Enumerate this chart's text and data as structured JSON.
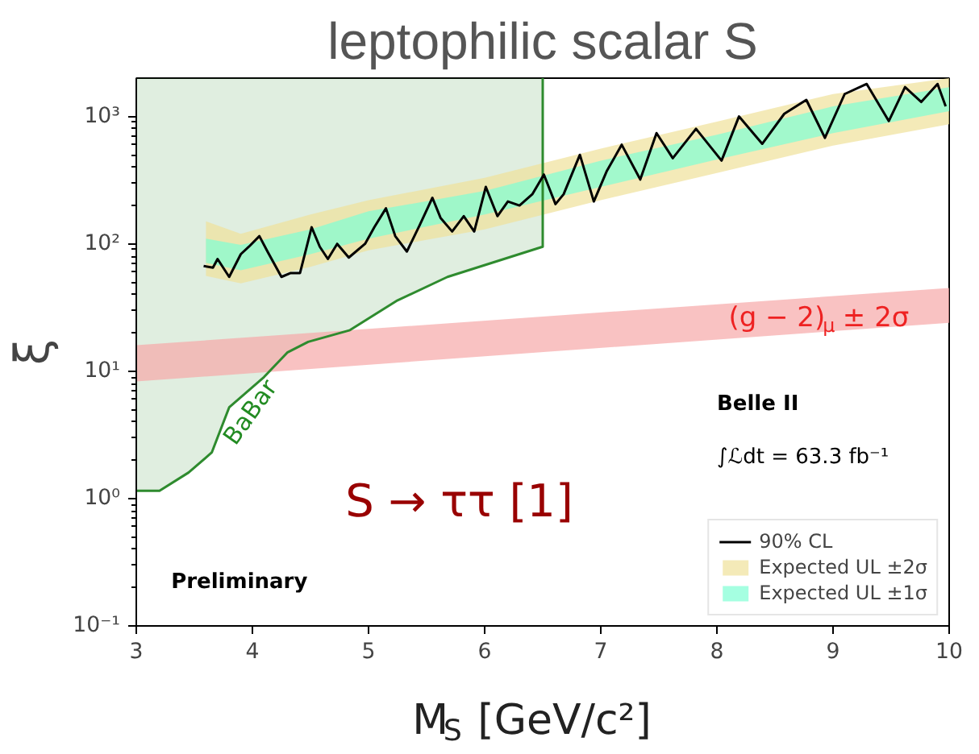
{
  "chart_data": {
    "type": "line",
    "title": "leptophilic scalar S",
    "xlabel": "M$_{S}$ [GeV/c²]",
    "ylabel": "ξ",
    "log": "y",
    "grid": false,
    "legend": "bottom right",
    "xlim": [
      3,
      10
    ],
    "xticks": [
      3,
      4,
      5,
      6,
      7,
      8,
      9,
      10
    ],
    "ylim": [
      0.1,
      2000
    ],
    "yticks": [
      {
        "value": 0.1,
        "label": "10⁻¹"
      },
      {
        "value": 1,
        "label": "10⁰"
      },
      {
        "value": 10,
        "label": "10¹"
      },
      {
        "value": 100,
        "label": "10²"
      },
      {
        "value": 1000,
        "label": "10³"
      }
    ],
    "series": [
      {
        "color": "#2e8b2e",
        "x": [
          3,
          3.2,
          3.45,
          3.65,
          3.8,
          4.1,
          4.3,
          4.48,
          4.84,
          5.25,
          5.68,
          6.5,
          6.5
        ],
        "values": [
          1.15,
          1.15,
          1.6,
          2.3,
          5.2,
          9,
          14,
          17,
          21,
          36,
          55,
          95,
          2000
        ],
        "lower": [
          1.15,
          1.15,
          1.6,
          2.3,
          5.2,
          9,
          14,
          17,
          21,
          36,
          55,
          95,
          2000
        ],
        "upper": [
          2000,
          2000,
          2000,
          2000,
          2000,
          2000,
          2000,
          2000,
          2000,
          2000,
          2000,
          2000,
          2000
        ]
      },
      {
        "color": "#f7a8a8",
        "x": [
          3,
          10
        ],
        "values": [
          null,
          null
        ],
        "lower": [
          8.3,
          24
        ],
        "upper": [
          16,
          45
        ]
      },
      {
        "name": "Expected UL ±2σ",
        "color": "#efe19a",
        "x": [
          3.6,
          3.9,
          4.5,
          5,
          6,
          7,
          8,
          9,
          10
        ],
        "values": [
          null,
          null,
          null,
          null,
          null,
          null,
          null,
          null,
          null
        ],
        "lower": [
          56,
          49,
          66,
          89,
          130,
          220,
          360,
          590,
          870
        ],
        "upper": [
          150,
          120,
          170,
          220,
          330,
          560,
          910,
          1500,
          2000
        ]
      },
      {
        "name": "Expected UL ±1σ",
        "color": "#7fffd4",
        "x": [
          3.6,
          3.9,
          4.5,
          5,
          6,
          7,
          8,
          9,
          10
        ],
        "values": [
          null,
          null,
          null,
          null,
          null,
          null,
          null,
          null,
          null
        ],
        "lower": [
          71,
          62,
          83,
          110,
          170,
          280,
          460,
          740,
          1100
        ],
        "upper": [
          110,
          98,
          130,
          180,
          260,
          450,
          720,
          1200,
          1700
        ]
      },
      {
        "name": "90% CL",
        "color": "#000000",
        "x": [
          3.58,
          3.66,
          3.7,
          3.8,
          3.9,
          3.97,
          4.06,
          4.13,
          4.25,
          4.33,
          4.41,
          4.51,
          4.58,
          4.65,
          4.73,
          4.83,
          4.97,
          5.05,
          5.15,
          5.23,
          5.33,
          5.44,
          5.55,
          5.62,
          5.72,
          5.82,
          5.91,
          6.01,
          6.11,
          6.2,
          6.3,
          6.41,
          6.51,
          6.61,
          6.68,
          6.82,
          6.94,
          7.05,
          7.18,
          7.34,
          7.48,
          7.62,
          7.82,
          8.04,
          8.19,
          8.39,
          8.58,
          8.77,
          8.93,
          9.1,
          9.29,
          9.48,
          9.62,
          9.76,
          9.9,
          9.97
        ],
        "values": [
          67,
          65,
          76,
          55,
          83,
          95,
          115,
          87,
          55,
          59,
          59,
          135,
          95,
          76,
          100,
          78,
          100,
          135,
          190,
          115,
          87,
          140,
          230,
          160,
          125,
          165,
          125,
          280,
          165,
          215,
          200,
          245,
          350,
          205,
          245,
          500,
          215,
          370,
          600,
          320,
          740,
          470,
          800,
          450,
          1000,
          610,
          1050,
          1350,
          680,
          1500,
          1800,
          920,
          1700,
          1300,
          1800,
          1200
        ]
      }
    ],
    "annotations": [
      "BaBar",
      "(g − 2)$_{μ}$ ± 2σ",
      "Belle II",
      "∫ℒdt = 63.3 fb⁻¹",
      "S → ττ [1]",
      "Preliminary"
    ]
  }
}
